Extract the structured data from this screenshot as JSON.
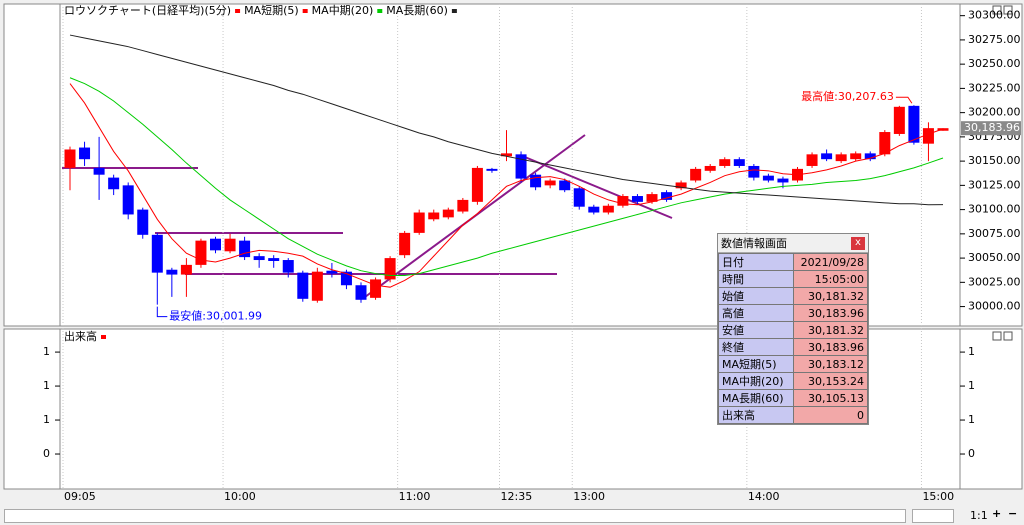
{
  "chart_data": [
    {
      "type": "candlestick",
      "title": "ロウソクチャート(日経平均)(5分)",
      "title_color": "#ff0000",
      "categories": [
        "09:05",
        null,
        null,
        null,
        null,
        null,
        null,
        null,
        null,
        null,
        null,
        "10:00",
        null,
        null,
        null,
        null,
        null,
        null,
        null,
        null,
        null,
        null,
        null,
        "11:00",
        null,
        null,
        null,
        null,
        null,
        null,
        "12:35",
        null,
        null,
        null,
        null,
        "13:00",
        null,
        null,
        null,
        null,
        null,
        null,
        null,
        null,
        null,
        null,
        null,
        "14:00",
        null,
        null,
        null,
        null,
        null,
        null,
        null,
        null,
        null,
        null,
        null,
        "15:00",
        null
      ],
      "open": [
        30143,
        30164,
        30143,
        30133,
        30125,
        30100,
        30074,
        30038,
        30033,
        30043,
        30070,
        30057,
        30068,
        30052,
        30050,
        30048,
        30035,
        30006,
        30037,
        30036,
        30022,
        30009,
        30028,
        30053,
        30076,
        30090,
        30092,
        30098,
        30108,
        30142,
        30155,
        30157,
        30136,
        30125,
        30130,
        30122,
        30103,
        30097,
        30104,
        30114,
        30108,
        30118,
        30122,
        30130,
        30140,
        30145,
        30152,
        30145,
        30135,
        30132,
        30130,
        30145,
        30158,
        30150,
        30152,
        30158,
        30157,
        30178,
        30207,
        30168,
        30181.32
      ],
      "high": [
        30165,
        30170,
        30175,
        30136,
        30128,
        30102,
        30076,
        30040,
        30050,
        30070,
        30072,
        30075,
        30072,
        30055,
        30053,
        30050,
        30037,
        30040,
        30045,
        30038,
        30025,
        30030,
        30052,
        30078,
        30100,
        30100,
        30102,
        30112,
        30145,
        30143,
        30182,
        30160,
        30138,
        30132,
        30132,
        30124,
        30105,
        30106,
        30116,
        30116,
        30118,
        30120,
        30130,
        30144,
        30147,
        30154,
        30154,
        30147,
        30137,
        30134,
        30144,
        30159,
        30162,
        30159,
        30160,
        30160,
        30182,
        30207,
        30207.63,
        30190,
        30183.96
      ],
      "low": [
        30120,
        30145,
        30110,
        30115,
        30090,
        30070,
        30001.99,
        30010,
        30010,
        30040,
        30055,
        30055,
        30048,
        30040,
        30040,
        30030,
        30005,
        30004,
        30030,
        30018,
        30004,
        30007,
        30025,
        30050,
        30074,
        30088,
        30090,
        30096,
        30105,
        30138,
        30150,
        30128,
        30120,
        30122,
        30118,
        30100,
        30095,
        30095,
        30102,
        30105,
        30106,
        30108,
        30120,
        30128,
        30138,
        30143,
        30143,
        30130,
        30128,
        30122,
        30128,
        30143,
        30150,
        30148,
        30150,
        30150,
        30155,
        30176,
        30167,
        30150,
        30181.32
      ],
      "close": [
        30162,
        30152,
        30136,
        30121,
        30095,
        30074,
        30035,
        30033,
        30043,
        30068,
        30058,
        30070,
        30051,
        30048,
        30047,
        30035,
        30008,
        30036,
        30034,
        30022,
        30007,
        30028,
        30050,
        30076,
        30097,
        30097,
        30100,
        30110,
        30143,
        30140,
        30158,
        30132,
        30123,
        30130,
        30120,
        30103,
        30097,
        30104,
        30114,
        30108,
        30116,
        30110,
        30128,
        30142,
        30145,
        30152,
        30145,
        30133,
        30130,
        30128,
        30142,
        30157,
        30152,
        30157,
        30158,
        30152,
        30180,
        30206,
        30169,
        30184,
        30183.96
      ],
      "up_color": "#ff0000",
      "down_color": "#0000ff",
      "series": [
        {
          "name": "MA短期(5)",
          "color": "#ff0000",
          "values": [
            30230,
            30210,
            30185,
            30160,
            30140,
            30115,
            30090,
            30070,
            30055,
            30048,
            30046,
            30050,
            30055,
            30058,
            30057,
            30055,
            30052,
            30044,
            30038,
            30034,
            30028,
            30022,
            30020,
            30027,
            30036,
            30052,
            30068,
            30084,
            30096,
            30110,
            30124,
            30130,
            30133,
            30134,
            30131,
            30124,
            30116,
            30110,
            30106,
            30105,
            30108,
            30112,
            30116,
            30122,
            30128,
            30135,
            30139,
            30141,
            30140,
            30137,
            30136,
            30138,
            30141,
            30145,
            30150,
            30153,
            30158,
            30166,
            30172,
            30178,
            30183.12
          ]
        },
        {
          "name": "MA中期(20)",
          "color": "#00cc00",
          "values": [
            30236,
            30230,
            30222,
            30212,
            30200,
            30188,
            30175,
            30162,
            30148,
            30135,
            30122,
            30110,
            30100,
            30090,
            30080,
            30070,
            30062,
            30054,
            30048,
            30042,
            30037,
            30034,
            30032,
            30032,
            30034,
            30038,
            30042,
            30046,
            30050,
            30055,
            30059,
            30063,
            30067,
            30071,
            30075,
            30079,
            30083,
            30087,
            30091,
            30095,
            30099,
            30103,
            30107,
            30110,
            30113,
            30116,
            30118,
            30120,
            30122,
            30124,
            30125,
            30126,
            30128,
            30129,
            30130,
            30132,
            30135,
            30139,
            30143,
            30148,
            30153.24
          ]
        },
        {
          "name": "MA長期(60)",
          "color": "#222222",
          "values": [
            30280,
            30277,
            30274,
            30271,
            30268,
            30264,
            30260,
            30256,
            30252,
            30248,
            30244,
            30240,
            30236,
            30232,
            30228,
            30223,
            30219,
            30214,
            30209,
            30204,
            30199,
            30194,
            30189,
            30184,
            30179,
            30175,
            30170,
            30166,
            30162,
            30158,
            30155,
            30152,
            30149,
            30146,
            30143,
            30140,
            30137,
            30134,
            30131,
            30129,
            30127,
            30125,
            30123,
            30121,
            30119,
            30118,
            30117,
            30116,
            30115,
            30114,
            30113,
            30112,
            30111,
            30110,
            30109,
            30108,
            30107,
            30106,
            30106,
            30105,
            30105.13
          ]
        }
      ],
      "ylim": [
        29981,
        30311
      ],
      "yticks": [
        {
          "value": 30000,
          "label": "30000.00"
        },
        {
          "value": 30025,
          "label": "30025.00"
        },
        {
          "value": 30050,
          "label": "30050.00"
        },
        {
          "value": 30075,
          "label": "30075.00"
        },
        {
          "value": 30100,
          "label": "30100.00"
        },
        {
          "value": 30125,
          "label": "30125.00"
        },
        {
          "value": 30150,
          "label": "30150.00"
        },
        {
          "value": 30175,
          "label": "30175.00"
        },
        {
          "value": 30200,
          "label": "30200.00"
        },
        {
          "value": 30225,
          "label": "30225.00"
        },
        {
          "value": 30250,
          "label": "30250.00"
        },
        {
          "value": 30275,
          "label": "30275.00"
        },
        {
          "value": 30300,
          "label": "30300.00"
        }
      ],
      "annotations": [
        {
          "text": "最高値:30,207.63",
          "value": 30207.63,
          "color": "#ff0000"
        },
        {
          "text": "最安値:30,001.99",
          "value": 30001.99,
          "color": "#0000ff"
        }
      ],
      "last_price": {
        "value": 30183.96,
        "label": "30,183.96"
      }
    },
    {
      "type": "volume",
      "title": "出来高",
      "color": "#ff0000",
      "ylim": [
        -0.2,
        1.66
      ],
      "yticks": [
        {
          "value": 1.4,
          "label": "1"
        },
        {
          "value": 1.0,
          "label": "1"
        },
        {
          "value": 0.6,
          "label": "1"
        },
        {
          "value": 0.2,
          "label": "0"
        }
      ]
    }
  ],
  "info_panel": {
    "title": "数値情報画面",
    "close": "x",
    "rows": [
      [
        "日付",
        "2021/09/28"
      ],
      [
        "時間",
        "15:05:00"
      ],
      [
        "始値",
        "30,181.32"
      ],
      [
        "高値",
        "30,183.96"
      ],
      [
        "安値",
        "30,181.32"
      ],
      [
        "終値",
        "30,183.96"
      ],
      [
        "MA短期(5)",
        "30,183.12"
      ],
      [
        "MA中期(20)",
        "30,153.24"
      ],
      [
        "MA長期(60)",
        "30,105.13"
      ],
      [
        "出来高",
        "0"
      ]
    ]
  },
  "toolbar": {
    "zoom": "1:1",
    "plus": "+",
    "minus": "−"
  }
}
